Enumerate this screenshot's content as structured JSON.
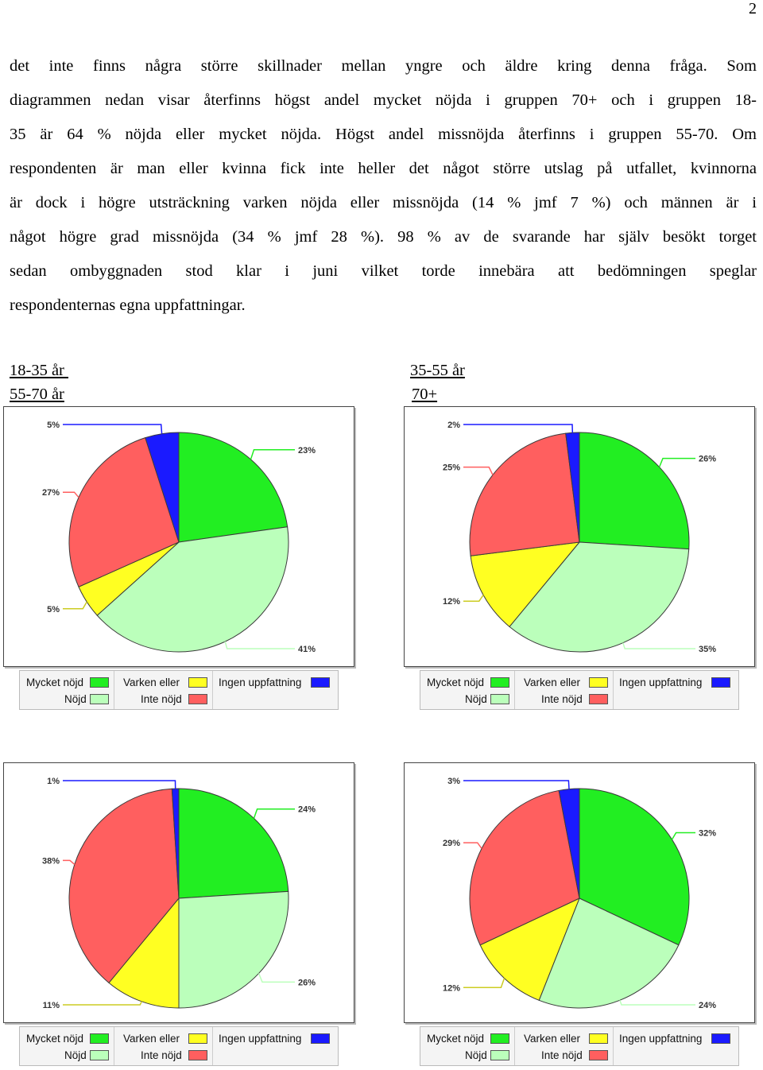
{
  "page_number": "2",
  "paragraph_lines": [
    "det inte finns några större skillnader mellan yngre och äldre kring denna fråga. Som",
    "diagrammen nedan visar återfinns högst andel mycket nöjda i gruppen 70+ och i gruppen 18-",
    "35 är 64 % nöjda eller mycket nöjda. Högst andel missnöjda återfinns i gruppen 55-70. Om",
    "respondenten är man eller kvinna fick inte heller det något större utslag på utfallet, kvinnorna",
    "är dock i högre utsträckning varken nöjda eller missnöjda (14 % jmf 7 %) och männen är i",
    "något högre grad missnöjda (34 % jmf 28 %). 98 % av de svarande har själv besökt torget",
    "sedan ombyggnaden stod klar i juni vilket torde innebära att bedömningen speglar",
    "respondenternas egna uppfattningar."
  ],
  "group_labels": {
    "g1": "18-35 år ",
    "g2": "35-55 år",
    "g3": "55-70 år",
    "g4": "70+"
  },
  "legend": {
    "mycket_nojd": "Mycket nöjd",
    "nojd": "Nöjd",
    "varken_eller": "Varken eller",
    "inte_nojd": "Inte nöjd",
    "ingen_uppfattning": "Ingen uppfattning"
  },
  "colors": {
    "mycket_nojd": "#22ee22",
    "nojd": "#bbffbb",
    "varken_eller": "#ffff22",
    "inte_nojd": "#ff5f5f",
    "ingen_uppfattning": "#1a1aff"
  },
  "chart_data": [
    {
      "type": "pie",
      "categories": [
        "Mycket nöjd",
        "Nöjd",
        "Varken eller",
        "Inte nöjd",
        "Ingen uppfattning"
      ],
      "values": [
        23,
        41,
        5,
        27,
        5
      ],
      "labels": [
        "23%",
        "41%",
        "5%",
        "27%",
        "5%"
      ]
    },
    {
      "type": "pie",
      "categories": [
        "Mycket nöjd",
        "Nöjd",
        "Varken eller",
        "Inte nöjd",
        "Ingen uppfattning"
      ],
      "values": [
        26,
        35,
        12,
        25,
        2
      ],
      "labels": [
        "26%",
        "35%",
        "12%",
        "25%",
        "2%"
      ]
    },
    {
      "type": "pie",
      "categories": [
        "Mycket nöjd",
        "Nöjd",
        "Varken eller",
        "Inte nöjd",
        "Ingen uppfattning"
      ],
      "values": [
        24,
        26,
        11,
        38,
        1
      ],
      "labels": [
        "24%",
        "26%",
        "11%",
        "38%",
        "1%"
      ]
    },
    {
      "type": "pie",
      "categories": [
        "Mycket nöjd",
        "Nöjd",
        "Varken eller",
        "Inte nöjd",
        "Ingen uppfattning"
      ],
      "values": [
        32,
        24,
        12,
        29,
        3
      ],
      "labels": [
        "32%",
        "24%",
        "12%",
        "29%",
        "3%"
      ]
    }
  ]
}
